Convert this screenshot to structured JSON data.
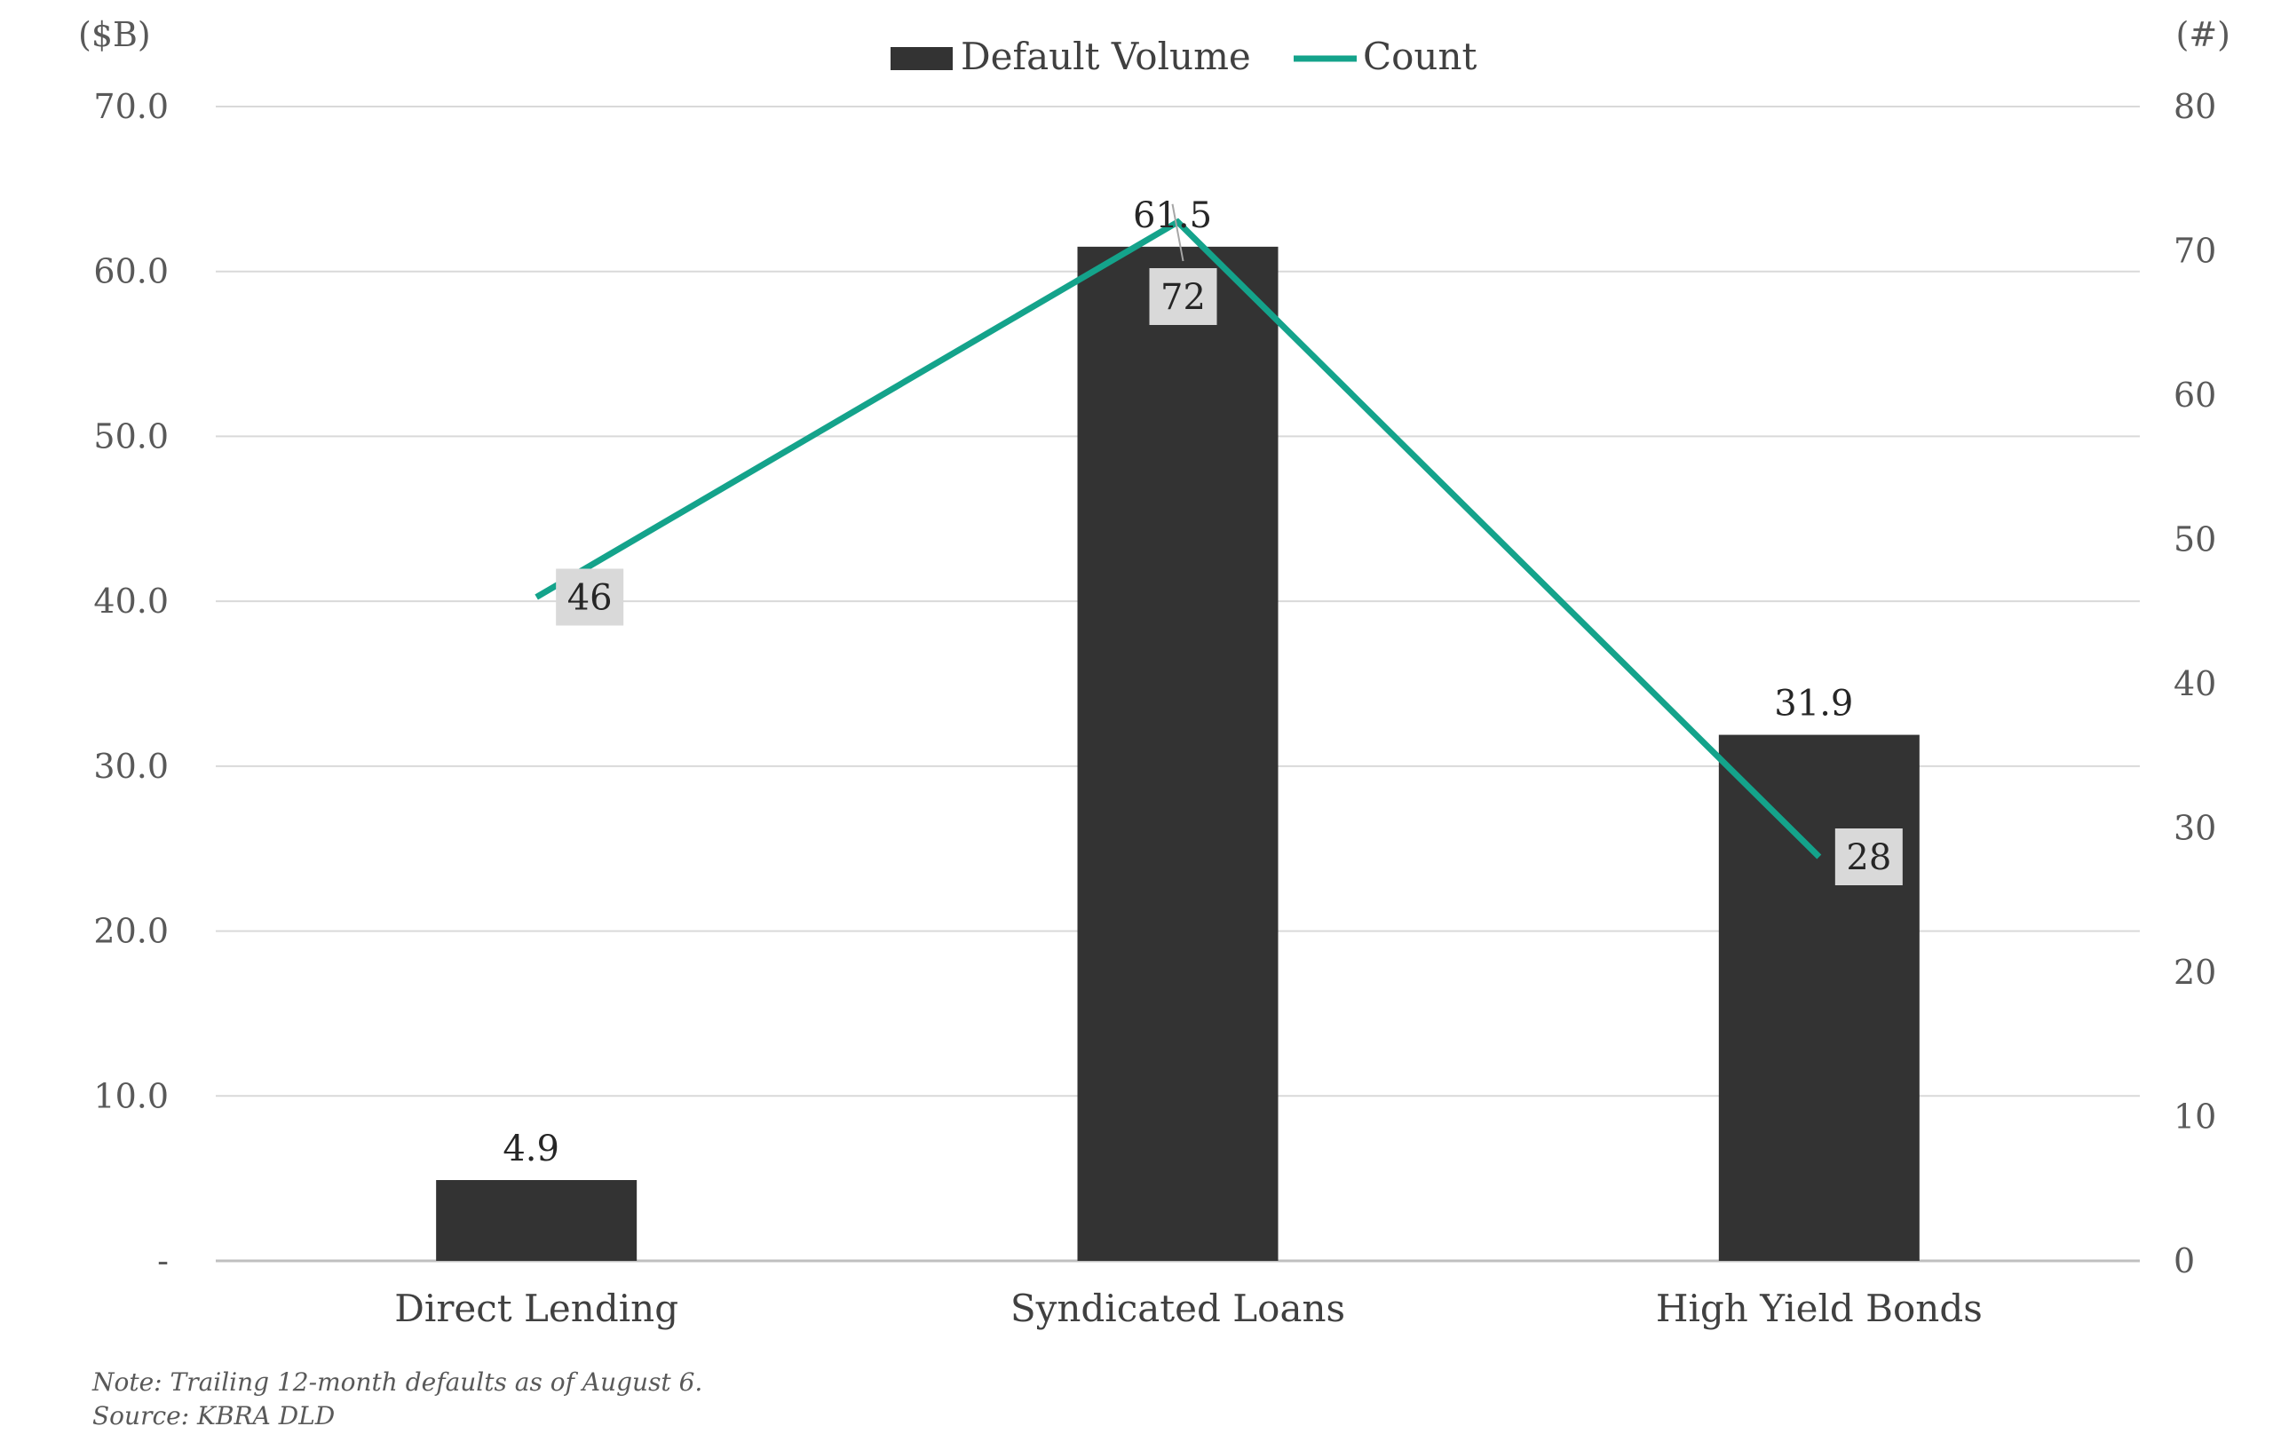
{
  "chart_data": {
    "type": "bar",
    "categories": [
      "Direct Lending",
      "Syndicated Loans",
      "High Yield Bonds"
    ],
    "series": [
      {
        "name": "Default Volume",
        "type": "bar",
        "axis": "left",
        "values": [
          4.9,
          61.5,
          31.9
        ],
        "labels": [
          "4.9",
          "61.5",
          "31.9"
        ],
        "color": "#333333"
      },
      {
        "name": "Count",
        "type": "line",
        "axis": "right",
        "values": [
          46,
          72,
          28
        ],
        "labels": [
          "46",
          "72",
          "28"
        ],
        "color": "#14A38B"
      }
    ],
    "left_axis": {
      "unit_label": "($B)",
      "min": 0,
      "max": 70,
      "ticks": [
        0,
        10,
        20,
        30,
        40,
        50,
        60,
        70
      ],
      "tick_labels": [
        "-",
        "10.0",
        "20.0",
        "30.0",
        "40.0",
        "50.0",
        "60.0",
        "70.0"
      ]
    },
    "right_axis": {
      "unit_label": "(#)",
      "min": 0,
      "max": 80,
      "ticks": [
        0,
        10,
        20,
        30,
        40,
        50,
        60,
        70,
        80
      ],
      "tick_labels": [
        "0",
        "10",
        "20",
        "30",
        "40",
        "50",
        "60",
        "70",
        "80"
      ]
    },
    "grid": true,
    "legend": "top-center"
  },
  "footnotes": {
    "note": "Note: Trailing 12-month defaults as of August 6.",
    "source": "Source: KBRA DLD"
  }
}
